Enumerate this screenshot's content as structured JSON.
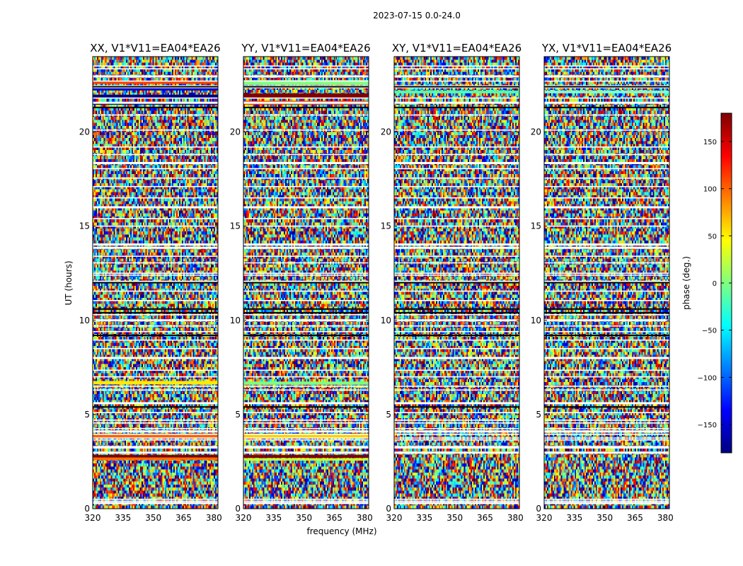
{
  "figure": {
    "suptitle": "2023-07-15 0.0-24.0"
  },
  "chart_data": {
    "type": "heatmap",
    "xlabel": "frequency (MHz)",
    "ylabel": "UT (hours)",
    "xlim": [
      320,
      382
    ],
    "ylim": [
      0,
      24
    ],
    "xticks": [
      320,
      335,
      350,
      365,
      380
    ],
    "yticks": [
      0,
      5,
      10,
      15,
      20
    ],
    "colorbar": {
      "label": "phase (deg.)",
      "range": [
        -180,
        180
      ],
      "ticks": [
        150,
        100,
        50,
        0,
        -50,
        -100,
        -150
      ],
      "colormap": "jet",
      "stops": [
        "#00007f",
        "#0000ff",
        "#007fff",
        "#00ffff",
        "#7fff7f",
        "#ffff00",
        "#ff7f00",
        "#ff0000",
        "#7f0000"
      ]
    },
    "flagged_rows_ut": [
      0.3,
      0.4,
      0.5,
      2.95,
      3.0,
      3.25,
      3.3,
      3.65,
      3.75,
      3.95,
      4.1,
      4.25,
      4.55,
      4.7,
      5.1,
      5.6,
      6.3,
      6.5,
      7.0,
      7.35,
      8.0,
      8.5,
      8.95,
      9.4,
      9.7,
      10.0,
      10.3,
      10.6,
      11.05,
      11.55,
      12.05,
      12.4,
      12.5,
      13.05,
      13.4,
      13.85,
      14.0,
      14.05,
      15.0,
      15.4,
      16.0,
      16.5,
      17.1,
      17.55,
      18.05,
      18.35,
      18.8,
      19.2,
      20.1,
      20.9,
      21.55,
      21.8,
      22.35,
      22.45,
      22.7,
      22.95,
      23.35,
      23.5
    ],
    "panels": [
      {
        "title": "XX, V1*V11=EA04*EA26",
        "features": [
          {
            "ut": [
              21.8,
              21.98
            ],
            "color": "#000080"
          },
          {
            "ut": [
              21.45,
              21.6
            ],
            "color": "#00007f"
          },
          {
            "ut": [
              22.2,
              22.35
            ],
            "color": "#0000cc"
          },
          {
            "ut": [
              22.55,
              22.7
            ],
            "color": "#ff4000"
          },
          {
            "ut": [
              6.6,
              6.78
            ],
            "color": "#ffea00"
          },
          {
            "ut": [
              3.78,
              3.95
            ],
            "color": "#ff6000"
          },
          {
            "ut": [
              2.58,
              2.72
            ],
            "color": "#ff6a00"
          },
          {
            "ut": [
              2.72,
              2.85
            ],
            "color": "#7f0000"
          }
        ]
      },
      {
        "title": "YY, V1*V11=EA04*EA26",
        "features": [
          {
            "ut": [
              22.5,
              22.75
            ],
            "color": "#7fff7f"
          },
          {
            "ut": [
              21.8,
              22.05
            ],
            "color": "#7f0000"
          },
          {
            "ut": [
              21.45,
              21.65
            ],
            "color": "#ff3000"
          },
          {
            "ut": [
              6.58,
              6.75
            ],
            "color": "#7fff7f"
          },
          {
            "ut": [
              3.72,
              3.95
            ],
            "color": "#ffd000"
          },
          {
            "ut": [
              2.7,
              2.85
            ],
            "color": "#7f0000"
          },
          {
            "ut": [
              2.55,
              2.68
            ],
            "color": "#c8ff30"
          }
        ]
      },
      {
        "title": "XY, V1*V11=EA04*EA26",
        "features": [
          {
            "ut": [
              22.05,
              22.2
            ],
            "color": "#50ffb0"
          }
        ]
      },
      {
        "title": "YX, V1*V11=EA04*EA26",
        "features": [
          {
            "ut": [
              22.05,
              22.2
            ],
            "color": "#7fffd0"
          }
        ]
      }
    ]
  }
}
